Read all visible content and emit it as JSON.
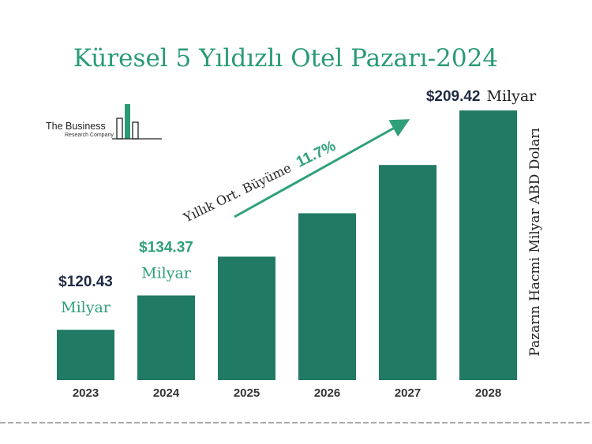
{
  "chart_data": {
    "type": "bar",
    "title": "Küresel 5 Yıldızlı Otel Pazarı-2024",
    "ylabel": "Pazarın Hacmi Milyar ABD Doları",
    "categories": [
      "2023",
      "2024",
      "2025",
      "2026",
      "2027",
      "2028"
    ],
    "values": [
      120.43,
      134.37,
      150.1,
      167.7,
      187.3,
      209.42
    ],
    "ylim": [
      100,
      212
    ],
    "grid": false,
    "bar_color": "#217a63",
    "data_labels": [
      {
        "category": "2023",
        "amount": "$120.43",
        "unit": "Milyar",
        "amount_color": "#1f2a44",
        "unit_color": "#2fa07a"
      },
      {
        "category": "2024",
        "amount": "$134.37",
        "unit": "Milyar",
        "amount_color": "#2fa07a",
        "unit_color": "#2fa07a"
      },
      {
        "category": "2028",
        "amount": "$209.42",
        "unit": "Milyar",
        "amount_color": "#1f2a44",
        "unit_color": "#222222"
      }
    ],
    "annotation": {
      "label": "Yıllık Ort. Büyüme",
      "value": "11.7%",
      "color": "#2fa07a"
    }
  },
  "logo": {
    "line1": "The Business",
    "line2": "Research Company"
  }
}
